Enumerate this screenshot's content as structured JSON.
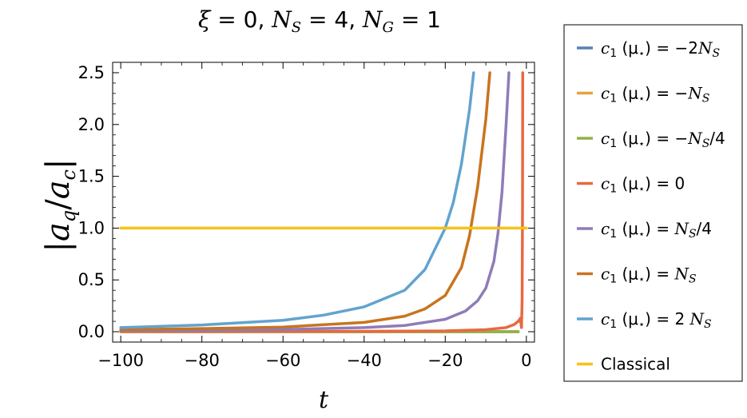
{
  "chart_data": {
    "type": "line",
    "title": "ξ = 0, N_S = 4, N_G = 1",
    "xlabel": "t",
    "ylabel": "|a_q / a_c|",
    "xlim": [
      -102,
      2
    ],
    "ylim": [
      -0.1,
      2.6
    ],
    "xticks": [
      -100,
      -80,
      -60,
      -40,
      -20,
      0
    ],
    "yticks": [
      0.0,
      0.5,
      1.0,
      1.5,
      2.0,
      2.5
    ],
    "x_tick_labels": [
      "−100",
      "−80",
      "−60",
      "−40",
      "−20",
      "0"
    ],
    "y_tick_labels": [
      "0.0",
      "0.5",
      "1.0",
      "1.5",
      "2.0",
      "2.5"
    ],
    "grid": false,
    "legend_position": "right, outside plot",
    "series": [
      {
        "name": "c1(μ*) = −2 NS",
        "color": "#5b7fb5",
        "points": [
          [
            -100,
            0.0
          ],
          [
            -80,
            0.0
          ],
          [
            -60,
            0.0
          ],
          [
            -40,
            0.0
          ],
          [
            -20,
            0.0
          ],
          [
            -10,
            0.0
          ],
          [
            -5,
            0.0
          ],
          [
            -3,
            0.0
          ],
          [
            -2,
            0.0
          ]
        ]
      },
      {
        "name": "c1(μ*) = −NS",
        "color": "#e6a23c",
        "points": [
          [
            -100,
            0.0
          ],
          [
            -80,
            0.0
          ],
          [
            -60,
            0.0
          ],
          [
            -40,
            0.0
          ],
          [
            -20,
            0.0
          ],
          [
            -10,
            0.0
          ],
          [
            -5,
            0.0
          ],
          [
            -3,
            0.0
          ],
          [
            -2,
            0.0
          ]
        ]
      },
      {
        "name": "c1(μ*) = −NS/4",
        "color": "#93b04a",
        "points": [
          [
            -100,
            0.0
          ],
          [
            -80,
            0.0
          ],
          [
            -60,
            0.0
          ],
          [
            -40,
            0.0
          ],
          [
            -20,
            0.0
          ],
          [
            -10,
            0.0
          ],
          [
            -5,
            0.0
          ],
          [
            -3,
            0.0
          ],
          [
            -2,
            0.0
          ]
        ]
      },
      {
        "name": "c1(μ*) = 0",
        "color": "#e8693f",
        "points": [
          [
            -100,
            0.002
          ],
          [
            -80,
            0.002
          ],
          [
            -60,
            0.003
          ],
          [
            -40,
            0.004
          ],
          [
            -20,
            0.008
          ],
          [
            -10,
            0.02
          ],
          [
            -5,
            0.04
          ],
          [
            -3,
            0.07
          ],
          [
            -2,
            0.1
          ],
          [
            -1.5,
            0.13
          ],
          [
            -1.2,
            0.04
          ],
          [
            -1.05,
            0.3
          ],
          [
            -0.95,
            1.2
          ],
          [
            -0.9,
            2.5
          ]
        ]
      },
      {
        "name": "c1(μ*) = NS/4",
        "color": "#8e7cb8",
        "points": [
          [
            -100,
            0.01
          ],
          [
            -80,
            0.014
          ],
          [
            -60,
            0.021
          ],
          [
            -40,
            0.04
          ],
          [
            -30,
            0.06
          ],
          [
            -20,
            0.12
          ],
          [
            -15,
            0.2
          ],
          [
            -12,
            0.3
          ],
          [
            -10,
            0.42
          ],
          [
            -8,
            0.68
          ],
          [
            -7,
            0.95
          ],
          [
            -6,
            1.35
          ],
          [
            -5,
            2.0
          ],
          [
            -4.3,
            2.5
          ]
        ]
      },
      {
        "name": "c1(μ*) = NS",
        "color": "#c8741f",
        "points": [
          [
            -100,
            0.02
          ],
          [
            -80,
            0.03
          ],
          [
            -60,
            0.045
          ],
          [
            -40,
            0.09
          ],
          [
            -30,
            0.15
          ],
          [
            -25,
            0.22
          ],
          [
            -20,
            0.35
          ],
          [
            -16,
            0.62
          ],
          [
            -14,
            0.93
          ],
          [
            -12,
            1.4
          ],
          [
            -10,
            2.05
          ],
          [
            -9,
            2.5
          ]
        ]
      },
      {
        "name": "c1(μ*) = 2 NS",
        "color": "#62a3cf",
        "points": [
          [
            -100,
            0.04
          ],
          [
            -80,
            0.065
          ],
          [
            -60,
            0.11
          ],
          [
            -50,
            0.16
          ],
          [
            -40,
            0.24
          ],
          [
            -30,
            0.4
          ],
          [
            -25,
            0.6
          ],
          [
            -20,
            1.0
          ],
          [
            -18,
            1.25
          ],
          [
            -16,
            1.62
          ],
          [
            -14,
            2.15
          ],
          [
            -13,
            2.5
          ]
        ]
      },
      {
        "name": "Classical",
        "color": "#f6c21a",
        "points": [
          [
            -100,
            1.0
          ],
          [
            0,
            1.0
          ]
        ]
      }
    ]
  },
  "legend": [
    {
      "c": "c",
      "sub1": "1",
      "mu": "(μ",
      "star": "⋆",
      "close": ")",
      "eq": " = −2",
      "ns": "N",
      "nssub": "S",
      "tail": ""
    },
    {
      "c": "c",
      "sub1": "1",
      "mu": "(μ",
      "star": "⋆",
      "close": ")",
      "eq": " = −",
      "ns": "N",
      "nssub": "S",
      "tail": ""
    },
    {
      "c": "c",
      "sub1": "1",
      "mu": "(μ",
      "star": "⋆",
      "close": ")",
      "eq": " = −",
      "ns": "N",
      "nssub": "S",
      "tail": "/4"
    },
    {
      "c": "c",
      "sub1": "1",
      "mu": "(μ",
      "star": "⋆",
      "close": ")",
      "eq": " = 0",
      "ns": "",
      "nssub": "",
      "tail": ""
    },
    {
      "c": "c",
      "sub1": "1",
      "mu": "(μ",
      "star": "⋆",
      "close": ")",
      "eq": " = ",
      "ns": "N",
      "nssub": "S",
      "tail": "/4"
    },
    {
      "c": "c",
      "sub1": "1",
      "mu": "(μ",
      "star": "⋆",
      "close": ")",
      "eq": " = ",
      "ns": "N",
      "nssub": "S",
      "tail": ""
    },
    {
      "c": "c",
      "sub1": "1",
      "mu": "(μ",
      "star": "⋆",
      "close": ")",
      "eq": " = 2 ",
      "ns": "N",
      "nssub": "S",
      "tail": ""
    },
    {
      "plain": "Classical"
    }
  ],
  "title_parts": {
    "xi": "ξ",
    "eq1": " = 0, ",
    "n": "N",
    "s": "S",
    "eq2": " = 4, ",
    "n2": "N",
    "g": "G",
    "eq3": " = 1"
  },
  "ylabel_parts": {
    "bar": "|",
    "a": "a",
    "q": "q",
    "slash": "/",
    "a2": "a",
    "c": "c"
  }
}
